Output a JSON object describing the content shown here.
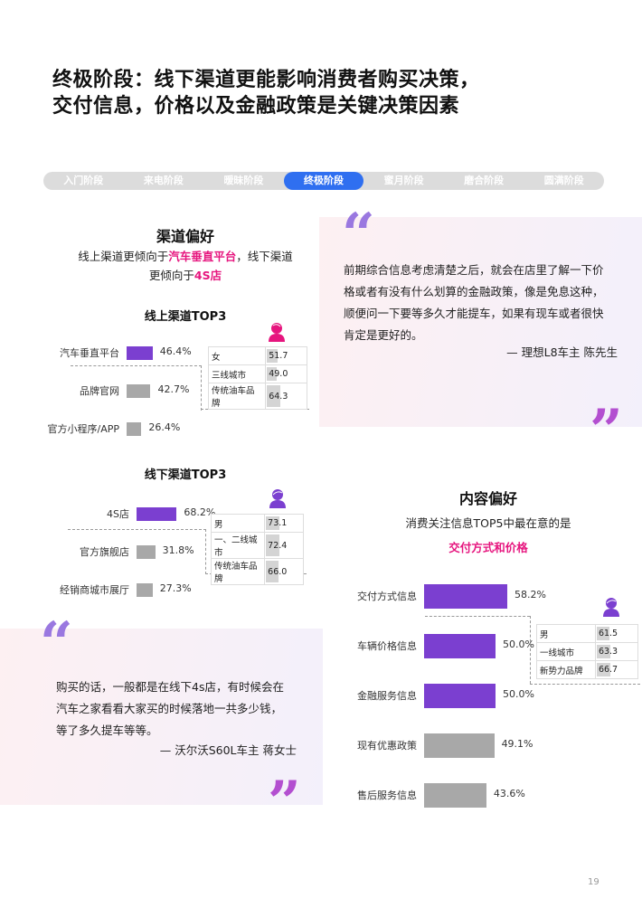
{
  "title": {
    "line1": "终极阶段：线下渠道更能影响消费者购买决策，",
    "line2": "交付信息，价格以及金融政策是关键决策因素"
  },
  "stages": [
    {
      "label": "入门阶段"
    },
    {
      "label": "来电阶段"
    },
    {
      "label": "暧昧阶段"
    },
    {
      "label": "终极阶段",
      "active": true
    },
    {
      "label": "蜜月阶段"
    },
    {
      "label": "磨合阶段"
    },
    {
      "label": "圆满阶段"
    }
  ],
  "channel": {
    "title": "渠道偏好",
    "sub_a": "线上渠道更倾向于",
    "sub_hl1": "汽车垂直平台",
    "sub_b": "，线下渠道",
    "sub_c": "更倾向于",
    "sub_hl2": "4S店",
    "online": {
      "title": "线上渠道TOP3",
      "items": [
        {
          "label": "汽车垂直平台",
          "value": 46.4,
          "pct": "46.4%"
        },
        {
          "label": "品牌官网",
          "value": 42.7,
          "pct": "42.7%"
        },
        {
          "label": "官方小程序/APP",
          "value": 26.4,
          "pct": "26.4%"
        }
      ],
      "profile": {
        "icon": "female-person-icon",
        "rows": [
          {
            "k": "女",
            "v": "51.7"
          },
          {
            "k": "三线城市",
            "v": "49.0"
          },
          {
            "k": "传统油车品牌",
            "v": "64.3"
          }
        ]
      }
    },
    "offline": {
      "title": "线下渠道TOP3",
      "items": [
        {
          "label": "4S店",
          "value": 68.2,
          "pct": "68.2%"
        },
        {
          "label": "官方旗舰店",
          "value": 31.8,
          "pct": "31.8%"
        },
        {
          "label": "经销商城市展厅",
          "value": 27.3,
          "pct": "27.3%"
        }
      ],
      "profile": {
        "icon": "male-person-icon",
        "rows": [
          {
            "k": "男",
            "v": "73.1"
          },
          {
            "k": "一、二线城市",
            "v": "72.4"
          },
          {
            "k": "传统油车品牌",
            "v": "66.0"
          }
        ]
      }
    }
  },
  "quote1": {
    "lines": [
      "前期综合信息考虑清楚之后，就会在店里了解一下价",
      "格或者有没有什么划算的金融政策，像是免息这种，",
      "顺便问一下要等多久才能提车，如果有现车或者很快",
      "肯定是更好的。"
    ],
    "author": "— 理想L8车主  陈先生"
  },
  "quote2": {
    "lines": [
      "购买的话，一般都是在线下4s店，有时候会在",
      "汽车之家看看大家买的时候落地一共多少钱，",
      "等了多久提车等等。"
    ],
    "author": "— 沃尔沃S60L车主 蒋女士"
  },
  "content": {
    "title": "内容偏好",
    "sub": "消费关注信息TOP5中最在意的是",
    "hl": "交付方式和价格",
    "items": [
      {
        "label": "交付方式信息",
        "value": 58.2,
        "pct": "58.2%"
      },
      {
        "label": "车辆价格信息",
        "value": 50.0,
        "pct": "50.0%"
      },
      {
        "label": "金融服务信息",
        "value": 50.0,
        "pct": "50.0%"
      },
      {
        "label": "现有优惠政策",
        "value": 49.1,
        "pct": "49.1%"
      },
      {
        "label": "售后服务信息",
        "value": 43.6,
        "pct": "43.6%"
      }
    ],
    "profile": {
      "icon": "male-person-icon",
      "rows": [
        {
          "k": "男",
          "v": "61.5"
        },
        {
          "k": "一线城市",
          "v": "63.3"
        },
        {
          "k": "新势力品牌",
          "v": "66.7"
        }
      ]
    }
  },
  "colors": {
    "purple": "#7b3fd0",
    "gray": "#a8a8a8",
    "pink": "#e6157e",
    "blue": "#2f6ff0"
  },
  "page_number": "19"
}
